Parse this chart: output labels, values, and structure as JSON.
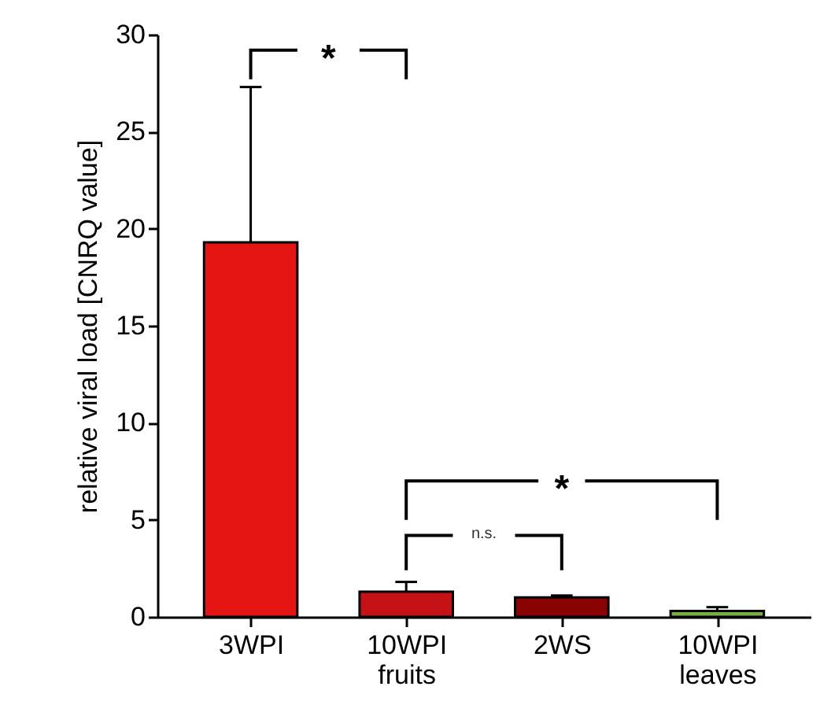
{
  "chart_data": {
    "type": "bar",
    "ylabel": "relative viral load [CNRQ value]",
    "categories": [
      "3WPI",
      "10WPI\nfruits",
      "2WS",
      "10WPI\nleaves"
    ],
    "values": [
      19.3,
      1.3,
      1.0,
      0.3
    ],
    "colors": [
      "#e41513",
      "#c51315",
      "#8a0303",
      "#74b046"
    ],
    "errors": [
      [
        19.3,
        27.3
      ],
      [
        1.3,
        1.8
      ],
      [
        1.0,
        1.1
      ],
      [
        0.3,
        0.5
      ]
    ],
    "ylim": [
      0,
      30
    ],
    "yticks": [
      0,
      5,
      10,
      15,
      20,
      25,
      30
    ],
    "grid": false,
    "annotations": [
      "*",
      "*",
      "n.s."
    ]
  }
}
